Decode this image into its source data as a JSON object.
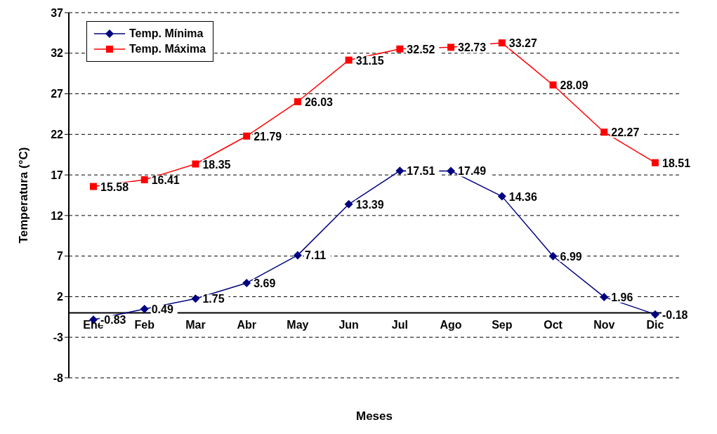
{
  "chart_data": {
    "type": "line",
    "xlabel": "Meses",
    "ylabel": "Temperatura (°C)",
    "categories": [
      "Ene",
      "Feb",
      "Mar",
      "Abr",
      "May",
      "Jun",
      "Jul",
      "Ago",
      "Sep",
      "Oct",
      "Nov",
      "Dic"
    ],
    "series": [
      {
        "name": "Temp. Mínima",
        "color": "#000080",
        "marker": "diamond",
        "values": [
          -0.83,
          0.49,
          1.75,
          3.69,
          7.11,
          13.39,
          17.51,
          17.49,
          14.36,
          6.99,
          1.96,
          -0.18
        ]
      },
      {
        "name": "Temp. Máxima",
        "color": "#ff0000",
        "marker": "square",
        "values": [
          15.58,
          16.41,
          18.35,
          21.79,
          26.03,
          31.15,
          32.52,
          32.73,
          33.27,
          28.09,
          22.27,
          18.51
        ]
      }
    ],
    "ylim": [
      -8,
      37
    ],
    "yticks": [
      -8,
      -3,
      2,
      7,
      12,
      17,
      22,
      27,
      32,
      37
    ],
    "grid": "y",
    "legend": "top left",
    "data_labels": true
  }
}
